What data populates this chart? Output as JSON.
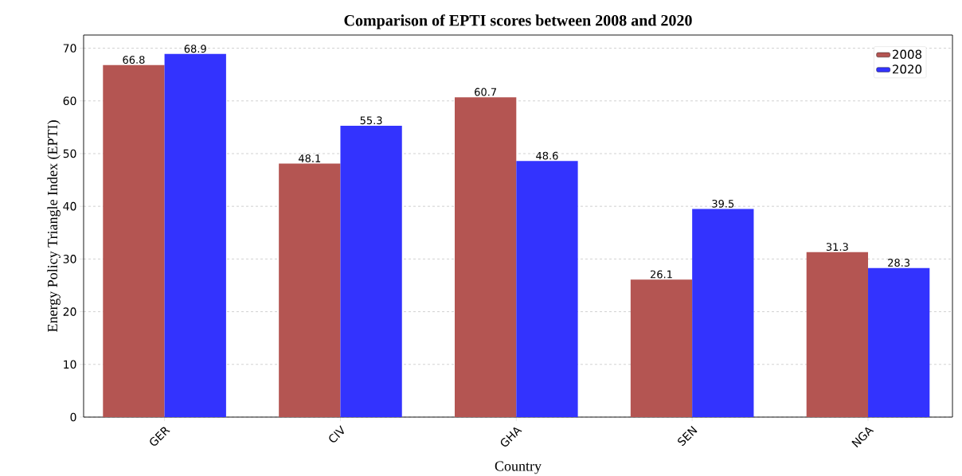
{
  "chart_data": {
    "type": "bar",
    "title": "Comparison of EPTI scores between 2008 and 2020",
    "xlabel": "Country",
    "ylabel": "Energy Policy Triangle Index (EPTI)",
    "categories": [
      "GER",
      "CIV",
      "GHA",
      "SEN",
      "NGA"
    ],
    "series": [
      {
        "name": "2008",
        "color": "#b45552",
        "values": [
          66.8,
          48.1,
          60.7,
          26.1,
          31.3
        ]
      },
      {
        "name": "2020",
        "color": "#3333fe",
        "values": [
          68.9,
          55.3,
          48.6,
          39.5,
          28.3
        ]
      }
    ],
    "ylim": [
      0,
      72.5
    ],
    "yticks": [
      0,
      10,
      20,
      30,
      40,
      50,
      60,
      70
    ],
    "grid": "y",
    "legend": "top right",
    "data_labels": true
  }
}
